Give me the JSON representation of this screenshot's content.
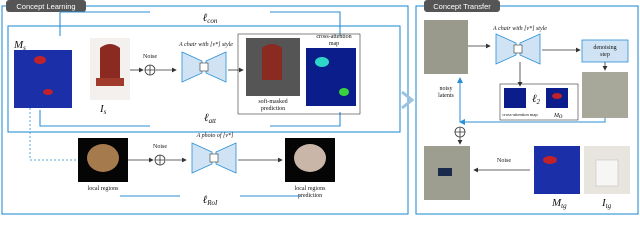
{
  "left": {
    "title": "Concept Learning",
    "loss_con": {
      "symbol": "ℓ",
      "sub": "con"
    },
    "loss_att": {
      "symbol": "ℓ",
      "sub": "att"
    },
    "loss_roi": {
      "symbol": "ℓ",
      "sub": "RoI"
    },
    "mask": {
      "symbol": "M",
      "sub": "s"
    },
    "image": {
      "symbol": "I",
      "sub": "s"
    },
    "noise_top": "Noise",
    "prompt_top": "A chair with [v*] style",
    "soft_masked": [
      "soft-masked",
      "prediction"
    ],
    "cross_attention": [
      "cross-attention",
      "map"
    ],
    "noise_bottom": "Noise",
    "prompt_bottom": "A photo of [v*]",
    "local_regions": "local regions",
    "local_prediction": [
      "local regions",
      "prediction"
    ]
  },
  "right": {
    "title": "Concept Transfer",
    "noisy_latents": [
      "noisy",
      "latents"
    ],
    "prompt": "A chair with [v*] style",
    "denoising": [
      "denoising",
      "step"
    ],
    "loss_l2": {
      "symbol": "ℓ",
      "sub": "2"
    },
    "cross_attention": "cross-attention map",
    "mask_o": {
      "symbol": "M",
      "sub": "o"
    },
    "noise": "Noise",
    "mask_tg": {
      "symbol": "M",
      "sub": "tg"
    },
    "image_tg": {
      "symbol": "I",
      "sub": "tg"
    }
  }
}
